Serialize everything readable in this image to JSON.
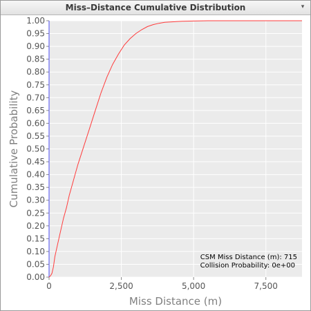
{
  "window": {
    "title": "Miss–Distance Cumulative Distribution",
    "menu_icon": "dropdown-arrow-icon"
  },
  "colors": {
    "curve": "#ff3b3b",
    "plot_bg": "#ebebeb",
    "grid": "#ffffff",
    "y_axis": "#4a4af0"
  },
  "chart_data": {
    "type": "line",
    "title": "Miss–Distance Cumulative Distribution",
    "xlabel": "Miss Distance (m)",
    "ylabel": "Cumulative Probability",
    "xlim": [
      0,
      8750
    ],
    "ylim": [
      0,
      1
    ],
    "x_ticks": [
      0,
      2500,
      5000,
      7500
    ],
    "x_tick_labels": [
      "0",
      "2,500",
      "5,000",
      "7,500"
    ],
    "y_ticks": [
      0,
      0.05,
      0.1,
      0.15,
      0.2,
      0.25,
      0.3,
      0.35,
      0.4,
      0.45,
      0.5,
      0.55,
      0.6,
      0.65,
      0.7,
      0.75,
      0.8,
      0.85,
      0.9,
      0.95,
      1.0
    ],
    "y_tick_labels": [
      "0.00",
      "0.05",
      "0.10",
      "0.15",
      "0.20",
      "0.25",
      "0.30",
      "0.35",
      "0.40",
      "0.45",
      "0.50",
      "0.55",
      "0.60",
      "0.65",
      "0.70",
      "0.75",
      "0.80",
      "0.85",
      "0.90",
      "0.95",
      "1.00"
    ],
    "grid": true,
    "series": [
      {
        "x": [
          0,
          50,
          100,
          150,
          200,
          300,
          400,
          500,
          600,
          700,
          800,
          900,
          1000,
          1200,
          1400,
          1600,
          1800,
          2000,
          2200,
          2400,
          2600,
          2800,
          3000,
          3200,
          3400,
          3600,
          3800,
          4000,
          4300,
          4600,
          5000,
          5500,
          6000,
          7000,
          8000,
          8750
        ],
        "y": [
          0,
          0.005,
          0.015,
          0.04,
          0.08,
          0.13,
          0.18,
          0.23,
          0.27,
          0.32,
          0.36,
          0.4,
          0.44,
          0.51,
          0.58,
          0.65,
          0.72,
          0.78,
          0.83,
          0.87,
          0.905,
          0.93,
          0.95,
          0.965,
          0.977,
          0.985,
          0.99,
          0.994,
          0.996,
          0.998,
          0.999,
          1.0,
          1.0,
          1.0,
          1.0,
          1.0
        ]
      }
    ],
    "annotations": [
      "CSM Miss Distance (m): 715",
      "Collision Probability: 0e+00"
    ],
    "legend": "none"
  }
}
